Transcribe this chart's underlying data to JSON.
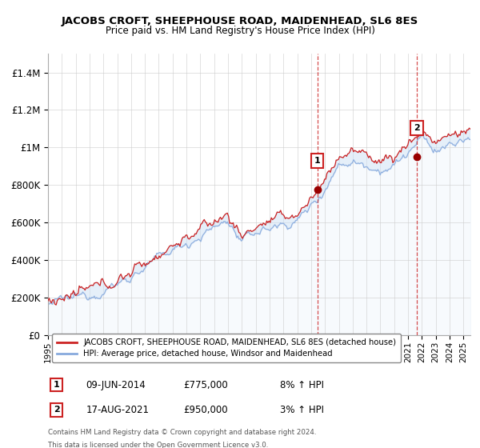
{
  "title": "JACOBS CROFT, SHEEPHOUSE ROAD, MAIDENHEAD, SL6 8ES",
  "subtitle": "Price paid vs. HM Land Registry's House Price Index (HPI)",
  "ylabel_ticks": [
    "£0",
    "£200K",
    "£400K",
    "£600K",
    "£800K",
    "£1M",
    "£1.2M",
    "£1.4M"
  ],
  "ytick_vals": [
    0,
    200000,
    400000,
    600000,
    800000,
    1000000,
    1200000,
    1400000
  ],
  "ylim": [
    0,
    1500000
  ],
  "xlim_start": 1995,
  "xlim_end": 2025.5,
  "sale1_year": 2014.44,
  "sale1_price": 775000,
  "sale1_label": "1",
  "sale1_date": "09-JUN-2014",
  "sale1_price_str": "£775,000",
  "sale1_pct": "8% ↑ HPI",
  "sale2_year": 2021.63,
  "sale2_price": 950000,
  "sale2_label": "2",
  "sale2_date": "17-AUG-2021",
  "sale2_price_str": "£950,000",
  "sale2_pct": "3% ↑ HPI",
  "red_line_color": "#cc2222",
  "blue_line_color": "#88aadd",
  "blue_fill_color": "#cce0f5",
  "vline_color": "#cc2222",
  "marker_color": "#990000",
  "annotation_box_color": "#cc2222",
  "legend_label_red": "JACOBS CROFT, SHEEPHOUSE ROAD, MAIDENHEAD, SL6 8ES (detached house)",
  "legend_label_blue": "HPI: Average price, detached house, Windsor and Maidenhead",
  "footer_line1": "Contains HM Land Registry data © Crown copyright and database right 2024.",
  "footer_line2": "This data is licensed under the Open Government Licence v3.0.",
  "background_color": "#ffffff",
  "grid_color": "#cccccc"
}
